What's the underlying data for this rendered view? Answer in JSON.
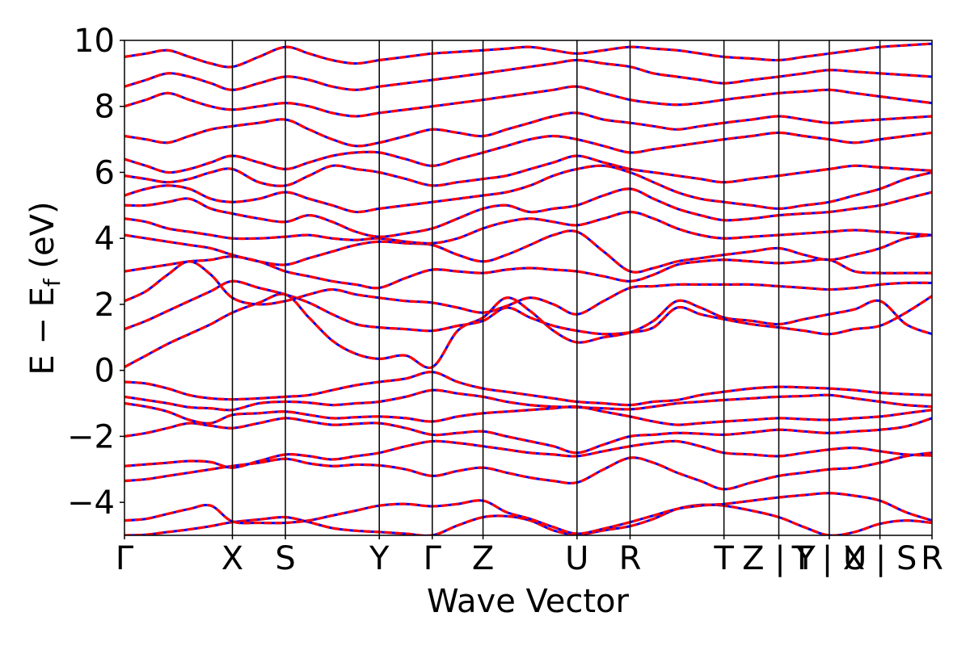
{
  "chart_data": {
    "type": "line",
    "title": "",
    "xlabel": "Wave Vector",
    "ylabel_parts": {
      "main": "E − E",
      "sub": "f",
      "unit": " (eV)"
    },
    "ylim": [
      -5,
      10
    ],
    "yticks": [
      {
        "value": 10,
        "label": "10"
      },
      {
        "value": 8,
        "label": "8"
      },
      {
        "value": 6,
        "label": "6"
      },
      {
        "value": 4,
        "label": "4"
      },
      {
        "value": 2,
        "label": "2"
      },
      {
        "value": 0,
        "label": "0"
      },
      {
        "value": -2,
        "label": "−2"
      },
      {
        "value": -4,
        "label": "−4"
      }
    ],
    "high_symmetry_points": [
      {
        "label": "Γ",
        "k": 0.0
      },
      {
        "label": "X",
        "k": 0.1161
      },
      {
        "label": "S",
        "k": 0.1731
      },
      {
        "label": "Y",
        "k": 0.2741
      },
      {
        "label": "Γ",
        "k": 0.3311
      },
      {
        "label": "Z",
        "k": 0.3857
      },
      {
        "label": "U",
        "k": 0.4868
      },
      {
        "label": "R",
        "k": 0.5439
      },
      {
        "label": "T",
        "k": 0.6449
      },
      {
        "label": "Z | Y",
        "k": 0.7039
      },
      {
        "label": "T | U",
        "k": 0.7582
      },
      {
        "label": "X | S",
        "k": 0.8127
      },
      {
        "label": "R",
        "k": 0.8687
      }
    ],
    "xlim": [
      0.0,
      0.8687
    ],
    "grid": false,
    "series_style": {
      "primary_color": "#ff0000",
      "overlay_color": "#0000ff",
      "overlay_dashed": true
    },
    "bands": {
      "k": [
        0.0,
        0.0232,
        0.0464,
        0.0697,
        0.0929,
        0.1161,
        0.1446,
        0.1731,
        0.1984,
        0.2236,
        0.2489,
        0.2741,
        0.3026,
        0.3311,
        0.3584,
        0.3857,
        0.411,
        0.4363,
        0.4615,
        0.4868,
        0.5154,
        0.5439,
        0.5691,
        0.5944,
        0.6196,
        0.6449,
        0.6744,
        0.7039,
        0.731,
        0.7582,
        0.7854,
        0.8127,
        0.8407,
        0.8687
      ],
      "energies": [
        [
          -5.0,
          -4.98,
          -4.9,
          -4.82,
          -4.72,
          -4.6,
          -4.52,
          -4.45,
          -4.6,
          -4.78,
          -4.86,
          -4.9,
          -4.95,
          -5.0,
          -4.7,
          -4.45,
          -4.42,
          -4.55,
          -4.85,
          -4.98,
          -4.85,
          -4.72,
          -4.5,
          -4.2,
          -4.08,
          -4.1,
          -4.25,
          -4.45,
          -4.75,
          -5.0,
          -4.9,
          -4.65,
          -4.55,
          -4.62
        ],
        [
          -4.55,
          -4.5,
          -4.35,
          -4.2,
          -4.1,
          -4.58,
          -4.62,
          -4.62,
          -4.55,
          -4.4,
          -4.25,
          -4.1,
          -4.05,
          -4.12,
          -4.05,
          -3.95,
          -4.3,
          -4.5,
          -4.75,
          -4.95,
          -4.8,
          -4.6,
          -4.4,
          -4.2,
          -4.1,
          -4.05,
          -3.95,
          -3.85,
          -3.78,
          -3.72,
          -3.8,
          -3.95,
          -4.3,
          -4.55
        ],
        [
          -3.35,
          -3.3,
          -3.2,
          -3.1,
          -3.0,
          -2.9,
          -2.8,
          -2.68,
          -2.82,
          -2.9,
          -2.86,
          -2.88,
          -3.0,
          -3.2,
          -3.05,
          -2.95,
          -3.1,
          -3.25,
          -3.35,
          -3.4,
          -3.0,
          -2.65,
          -2.8,
          -3.1,
          -3.35,
          -3.6,
          -3.4,
          -3.2,
          -3.1,
          -3.0,
          -2.95,
          -2.8,
          -2.6,
          -2.5
        ],
        [
          -2.9,
          -2.85,
          -2.8,
          -2.75,
          -2.78,
          -2.95,
          -2.75,
          -2.55,
          -2.6,
          -2.7,
          -2.6,
          -2.5,
          -2.3,
          -2.15,
          -2.2,
          -2.3,
          -2.4,
          -2.5,
          -2.55,
          -2.6,
          -2.45,
          -2.3,
          -2.2,
          -2.15,
          -2.3,
          -2.5,
          -2.55,
          -2.6,
          -2.5,
          -2.4,
          -2.35,
          -2.45,
          -2.55,
          -2.58
        ],
        [
          -2.0,
          -1.9,
          -1.75,
          -1.6,
          -1.68,
          -1.75,
          -1.6,
          -1.45,
          -1.55,
          -1.65,
          -1.62,
          -1.6,
          -1.75,
          -1.95,
          -1.9,
          -1.85,
          -2.0,
          -2.15,
          -2.3,
          -2.5,
          -2.25,
          -2.0,
          -1.95,
          -1.9,
          -1.92,
          -1.95,
          -1.88,
          -1.8,
          -1.85,
          -1.9,
          -1.85,
          -1.8,
          -1.7,
          -1.45
        ],
        [
          -1.0,
          -1.1,
          -1.25,
          -1.5,
          -1.6,
          -1.35,
          -1.3,
          -1.25,
          -1.35,
          -1.45,
          -1.42,
          -1.4,
          -1.45,
          -1.55,
          -1.4,
          -1.3,
          -1.25,
          -1.2,
          -1.15,
          -1.1,
          -1.25,
          -1.4,
          -1.55,
          -1.65,
          -1.6,
          -1.55,
          -1.5,
          -1.45,
          -1.48,
          -1.5,
          -1.45,
          -1.4,
          -1.3,
          -1.2
        ],
        [
          -0.8,
          -0.9,
          -1.0,
          -1.12,
          -1.15,
          -1.2,
          -1.0,
          -0.95,
          -0.98,
          -1.05,
          -1.0,
          -0.95,
          -0.8,
          -0.6,
          -0.7,
          -0.8,
          -0.95,
          -1.05,
          -1.1,
          -1.12,
          -1.15,
          -1.18,
          -1.1,
          -1.0,
          -0.95,
          -0.9,
          -0.85,
          -0.8,
          -0.78,
          -0.75,
          -0.85,
          -0.95,
          -1.05,
          -1.1
        ],
        [
          -0.35,
          -0.4,
          -0.55,
          -0.75,
          -0.85,
          -0.88,
          -0.85,
          -0.8,
          -0.75,
          -0.6,
          -0.45,
          -0.35,
          -0.25,
          -0.05,
          -0.35,
          -0.55,
          -0.65,
          -0.75,
          -0.85,
          -0.95,
          -1.0,
          -1.05,
          -0.95,
          -0.9,
          -0.75,
          -0.65,
          -0.55,
          -0.5,
          -0.52,
          -0.55,
          -0.6,
          -0.68,
          -0.72,
          -0.75
        ],
        [
          0.1,
          0.45,
          0.8,
          1.1,
          1.4,
          1.75,
          2.05,
          2.3,
          1.6,
          0.9,
          0.5,
          0.35,
          0.45,
          0.1,
          1.2,
          1.6,
          2.2,
          1.8,
          1.2,
          0.85,
          1.0,
          1.15,
          1.5,
          2.1,
          1.9,
          1.6,
          1.5,
          1.4,
          1.55,
          1.7,
          1.85,
          2.1,
          1.4,
          1.1
        ],
        [
          1.25,
          1.5,
          1.8,
          2.1,
          2.4,
          2.7,
          2.5,
          2.3,
          2.05,
          1.7,
          1.4,
          1.3,
          1.25,
          1.2,
          1.35,
          1.5,
          1.9,
          1.6,
          1.35,
          1.2,
          1.1,
          1.15,
          1.3,
          1.9,
          1.7,
          1.55,
          1.4,
          1.3,
          1.2,
          1.1,
          1.25,
          1.35,
          1.75,
          2.25
        ],
        [
          2.1,
          2.4,
          2.9,
          3.3,
          2.9,
          2.2,
          2.0,
          2.1,
          2.3,
          2.45,
          2.3,
          2.2,
          2.1,
          2.05,
          1.9,
          1.75,
          1.95,
          2.2,
          2.0,
          1.7,
          2.1,
          2.5,
          2.55,
          2.6,
          2.6,
          2.6,
          2.6,
          2.55,
          2.5,
          2.45,
          2.5,
          2.6,
          2.65,
          2.65
        ],
        [
          3.0,
          3.1,
          3.2,
          3.3,
          3.35,
          3.45,
          3.3,
          3.0,
          2.85,
          2.7,
          2.6,
          2.5,
          2.8,
          3.05,
          3.0,
          2.95,
          3.05,
          3.1,
          3.05,
          3.0,
          2.85,
          2.7,
          2.9,
          3.2,
          3.3,
          3.35,
          3.3,
          3.25,
          3.3,
          3.35,
          3.0,
          2.95,
          2.95,
          2.95
        ],
        [
          4.1,
          4.0,
          3.9,
          3.8,
          3.7,
          3.5,
          3.3,
          3.2,
          3.4,
          3.6,
          3.8,
          3.9,
          3.85,
          3.8,
          3.5,
          3.3,
          3.5,
          3.8,
          4.1,
          4.2,
          3.6,
          3.0,
          3.1,
          3.3,
          3.4,
          3.5,
          3.6,
          3.7,
          3.5,
          3.35,
          3.5,
          3.7,
          4.0,
          4.1
        ],
        [
          4.6,
          4.5,
          4.3,
          4.2,
          4.1,
          4.0,
          4.0,
          4.05,
          4.1,
          4.0,
          3.95,
          4.0,
          3.9,
          3.85,
          4.0,
          4.3,
          4.5,
          4.6,
          4.5,
          4.4,
          4.6,
          4.8,
          4.6,
          4.3,
          4.1,
          4.0,
          4.05,
          4.1,
          4.15,
          4.2,
          4.25,
          4.2,
          4.15,
          4.1
        ],
        [
          5.0,
          5.0,
          5.1,
          5.2,
          4.9,
          4.75,
          4.6,
          4.5,
          4.7,
          4.5,
          4.2,
          4.05,
          4.15,
          4.3,
          4.6,
          4.9,
          5.0,
          4.8,
          4.9,
          5.0,
          5.3,
          5.5,
          5.2,
          4.9,
          4.7,
          4.55,
          4.6,
          4.7,
          4.75,
          4.8,
          4.9,
          5.0,
          5.2,
          5.4
        ],
        [
          5.3,
          5.5,
          5.6,
          5.5,
          5.2,
          5.1,
          5.2,
          5.4,
          5.2,
          5.0,
          4.8,
          4.9,
          5.0,
          5.1,
          5.2,
          5.3,
          5.4,
          5.6,
          5.9,
          6.1,
          6.2,
          6.0,
          5.7,
          5.4,
          5.2,
          5.1,
          5.0,
          4.9,
          5.0,
          5.1,
          5.3,
          5.5,
          5.8,
          6.0
        ],
        [
          5.9,
          5.8,
          5.7,
          5.8,
          6.0,
          6.1,
          5.7,
          5.6,
          5.9,
          6.2,
          6.1,
          6.0,
          5.8,
          5.6,
          5.7,
          5.8,
          5.9,
          6.1,
          6.3,
          6.5,
          6.3,
          6.1,
          6.0,
          5.9,
          5.8,
          5.7,
          5.8,
          5.9,
          6.0,
          6.1,
          6.2,
          6.15,
          6.1,
          6.05
        ],
        [
          6.4,
          6.2,
          6.0,
          6.1,
          6.3,
          6.5,
          6.3,
          6.1,
          6.3,
          6.5,
          6.6,
          6.6,
          6.4,
          6.2,
          6.4,
          6.6,
          6.8,
          7.0,
          7.1,
          7.0,
          6.8,
          6.6,
          6.7,
          6.8,
          6.9,
          7.0,
          7.1,
          7.2,
          7.1,
          7.0,
          6.9,
          7.0,
          7.1,
          7.2
        ],
        [
          7.1,
          7.0,
          6.9,
          7.1,
          7.3,
          7.4,
          7.5,
          7.6,
          7.3,
          7.0,
          6.8,
          6.9,
          7.1,
          7.3,
          7.2,
          7.1,
          7.3,
          7.5,
          7.7,
          7.8,
          7.6,
          7.5,
          7.4,
          7.3,
          7.4,
          7.5,
          7.6,
          7.7,
          7.6,
          7.5,
          7.55,
          7.6,
          7.65,
          7.7
        ],
        [
          8.0,
          8.2,
          8.4,
          8.2,
          8.0,
          7.9,
          8.0,
          8.1,
          8.0,
          7.8,
          7.7,
          7.8,
          7.9,
          8.0,
          8.1,
          8.2,
          8.3,
          8.4,
          8.5,
          8.6,
          8.4,
          8.2,
          8.1,
          8.05,
          8.1,
          8.2,
          8.3,
          8.4,
          8.45,
          8.5,
          8.4,
          8.3,
          8.2,
          8.1
        ],
        [
          8.6,
          8.8,
          9.0,
          8.9,
          8.7,
          8.5,
          8.7,
          8.9,
          8.8,
          8.6,
          8.5,
          8.6,
          8.7,
          8.8,
          8.9,
          9.0,
          9.1,
          9.2,
          9.3,
          9.4,
          9.3,
          9.2,
          9.0,
          8.9,
          8.8,
          8.7,
          8.8,
          8.9,
          9.0,
          9.1,
          9.05,
          9.0,
          8.95,
          8.9
        ],
        [
          9.5,
          9.6,
          9.7,
          9.5,
          9.3,
          9.2,
          9.5,
          9.8,
          9.6,
          9.4,
          9.3,
          9.4,
          9.5,
          9.6,
          9.65,
          9.7,
          9.75,
          9.8,
          9.7,
          9.6,
          9.7,
          9.8,
          9.75,
          9.7,
          9.6,
          9.5,
          9.45,
          9.4,
          9.5,
          9.6,
          9.7,
          9.8,
          9.85,
          9.9
        ]
      ]
    }
  }
}
